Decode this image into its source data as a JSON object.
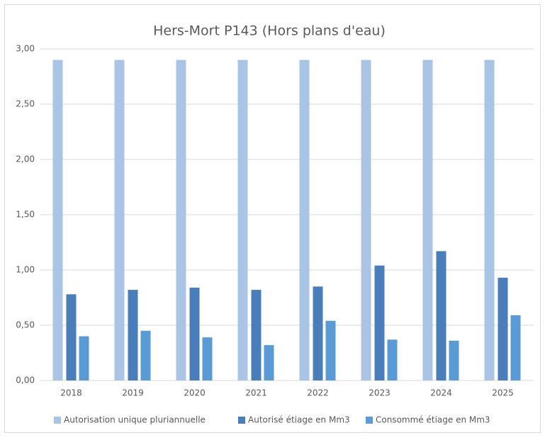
{
  "chart_data": {
    "type": "bar",
    "title": "Hers-Mort  P143 (Hors plans d'eau)",
    "categories": [
      "2018",
      "2019",
      "2020",
      "2021",
      "2022",
      "2023",
      "2024",
      "2025"
    ],
    "series": [
      {
        "name": "Autorisation unique pluriannuelle",
        "color": "#aac4e6",
        "values": [
          2.9,
          2.9,
          2.9,
          2.9,
          2.9,
          2.9,
          2.9,
          2.9
        ]
      },
      {
        "name": "Autorisé étiage en Mm3",
        "color": "#4a7ebb",
        "values": [
          0.78,
          0.82,
          0.84,
          0.82,
          0.85,
          1.04,
          1.17,
          0.93
        ]
      },
      {
        "name": "Consommé étiage en Mm3",
        "color": "#5b9bd5",
        "values": [
          0.4,
          0.45,
          0.39,
          0.32,
          0.54,
          0.37,
          0.36,
          0.59
        ]
      }
    ],
    "ylim": [
      0,
      3
    ],
    "yticks": [
      {
        "value": 0,
        "label": "0,00"
      },
      {
        "value": 0.5,
        "label": "0,50"
      },
      {
        "value": 1,
        "label": "1,00"
      },
      {
        "value": 1.5,
        "label": "1,50"
      },
      {
        "value": 2,
        "label": "2,00"
      },
      {
        "value": 2.5,
        "label": "2,50"
      },
      {
        "value": 3,
        "label": "3,00"
      }
    ],
    "grid": true,
    "legend": "bottom"
  }
}
